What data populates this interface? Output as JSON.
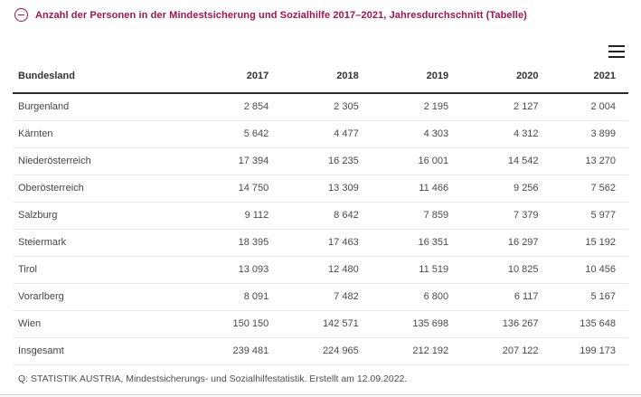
{
  "panel": {
    "title": "Anzahl der Personen in der Mindestsicherung und Sozialhilfe 2017–2021, Jahresdurchschnitt (Tabelle)",
    "collapse_icon": "minus-circle-icon"
  },
  "toolbar": {
    "menu_icon": "hamburger-icon"
  },
  "table": {
    "columns": [
      "Bundesland",
      "2017",
      "2018",
      "2019",
      "2020",
      "2021"
    ],
    "rows": [
      {
        "label": "Burgenland",
        "values": [
          "2 854",
          "2 305",
          "2 195",
          "2 127",
          "2 004"
        ]
      },
      {
        "label": "Kärnten",
        "values": [
          "5 642",
          "4 477",
          "4 303",
          "4 312",
          "3 899"
        ]
      },
      {
        "label": "Niederösterreich",
        "values": [
          "17 394",
          "16 235",
          "16 001",
          "14 542",
          "13 270"
        ]
      },
      {
        "label": "Oberösterreich",
        "values": [
          "14 750",
          "13 309",
          "11 466",
          "9 256",
          "7 562"
        ]
      },
      {
        "label": "Salzburg",
        "values": [
          "9 112",
          "8 642",
          "7 859",
          "7 379",
          "5 977"
        ]
      },
      {
        "label": "Steiermark",
        "values": [
          "18 395",
          "17 463",
          "16 351",
          "16 297",
          "15 192"
        ]
      },
      {
        "label": "Tirol",
        "values": [
          "13 093",
          "12 480",
          "11 519",
          "10 825",
          "10 456"
        ]
      },
      {
        "label": "Vorarlberg",
        "values": [
          "8 091",
          "7 482",
          "6 800",
          "6 117",
          "5 167"
        ]
      },
      {
        "label": "Wien",
        "values": [
          "150 150",
          "142 571",
          "135 698",
          "136 267",
          "135 648"
        ]
      },
      {
        "label": "Insgesamt",
        "values": [
          "239 481",
          "224 965",
          "212 192",
          "207 122",
          "199 173"
        ]
      }
    ]
  },
  "footer": {
    "source": "Q: STATISTIK AUSTRIA, Mindestsicherungs- und Sozialhilfestatistik. Erstellt am 12.09.2022."
  },
  "colors": {
    "accent": "#A5124D",
    "header_text": "#333333",
    "body_text": "#4A4A4A",
    "header_rule": "#2B2B2B",
    "row_rule": "#E9E9E9",
    "page_rule": "#C9CED1"
  },
  "chart_data": {
    "type": "table",
    "title": "Anzahl der Personen in der Mindestsicherung und Sozialhilfe 2017–2021, Jahresdurchschnitt",
    "categories": [
      "2017",
      "2018",
      "2019",
      "2020",
      "2021"
    ],
    "row_header": "Bundesland",
    "series": [
      {
        "name": "Burgenland",
        "values": [
          2854,
          2305,
          2195,
          2127,
          2004
        ]
      },
      {
        "name": "Kärnten",
        "values": [
          5642,
          4477,
          4303,
          4312,
          3899
        ]
      },
      {
        "name": "Niederösterreich",
        "values": [
          17394,
          16235,
          16001,
          14542,
          13270
        ]
      },
      {
        "name": "Oberösterreich",
        "values": [
          14750,
          13309,
          11466,
          9256,
          7562
        ]
      },
      {
        "name": "Salzburg",
        "values": [
          9112,
          8642,
          7859,
          7379,
          5977
        ]
      },
      {
        "name": "Steiermark",
        "values": [
          18395,
          17463,
          16351,
          16297,
          15192
        ]
      },
      {
        "name": "Tirol",
        "values": [
          13093,
          12480,
          11519,
          10825,
          10456
        ]
      },
      {
        "name": "Vorarlberg",
        "values": [
          8091,
          7482,
          6800,
          6117,
          5167
        ]
      },
      {
        "name": "Wien",
        "values": [
          150150,
          142571,
          135698,
          136267,
          135648
        ]
      },
      {
        "name": "Insgesamt",
        "values": [
          239481,
          224965,
          212192,
          207122,
          199173
        ]
      }
    ],
    "source": "Q: STATISTIK AUSTRIA, Mindestsicherungs- und Sozialhilfestatistik. Erstellt am 12.09.2022."
  }
}
